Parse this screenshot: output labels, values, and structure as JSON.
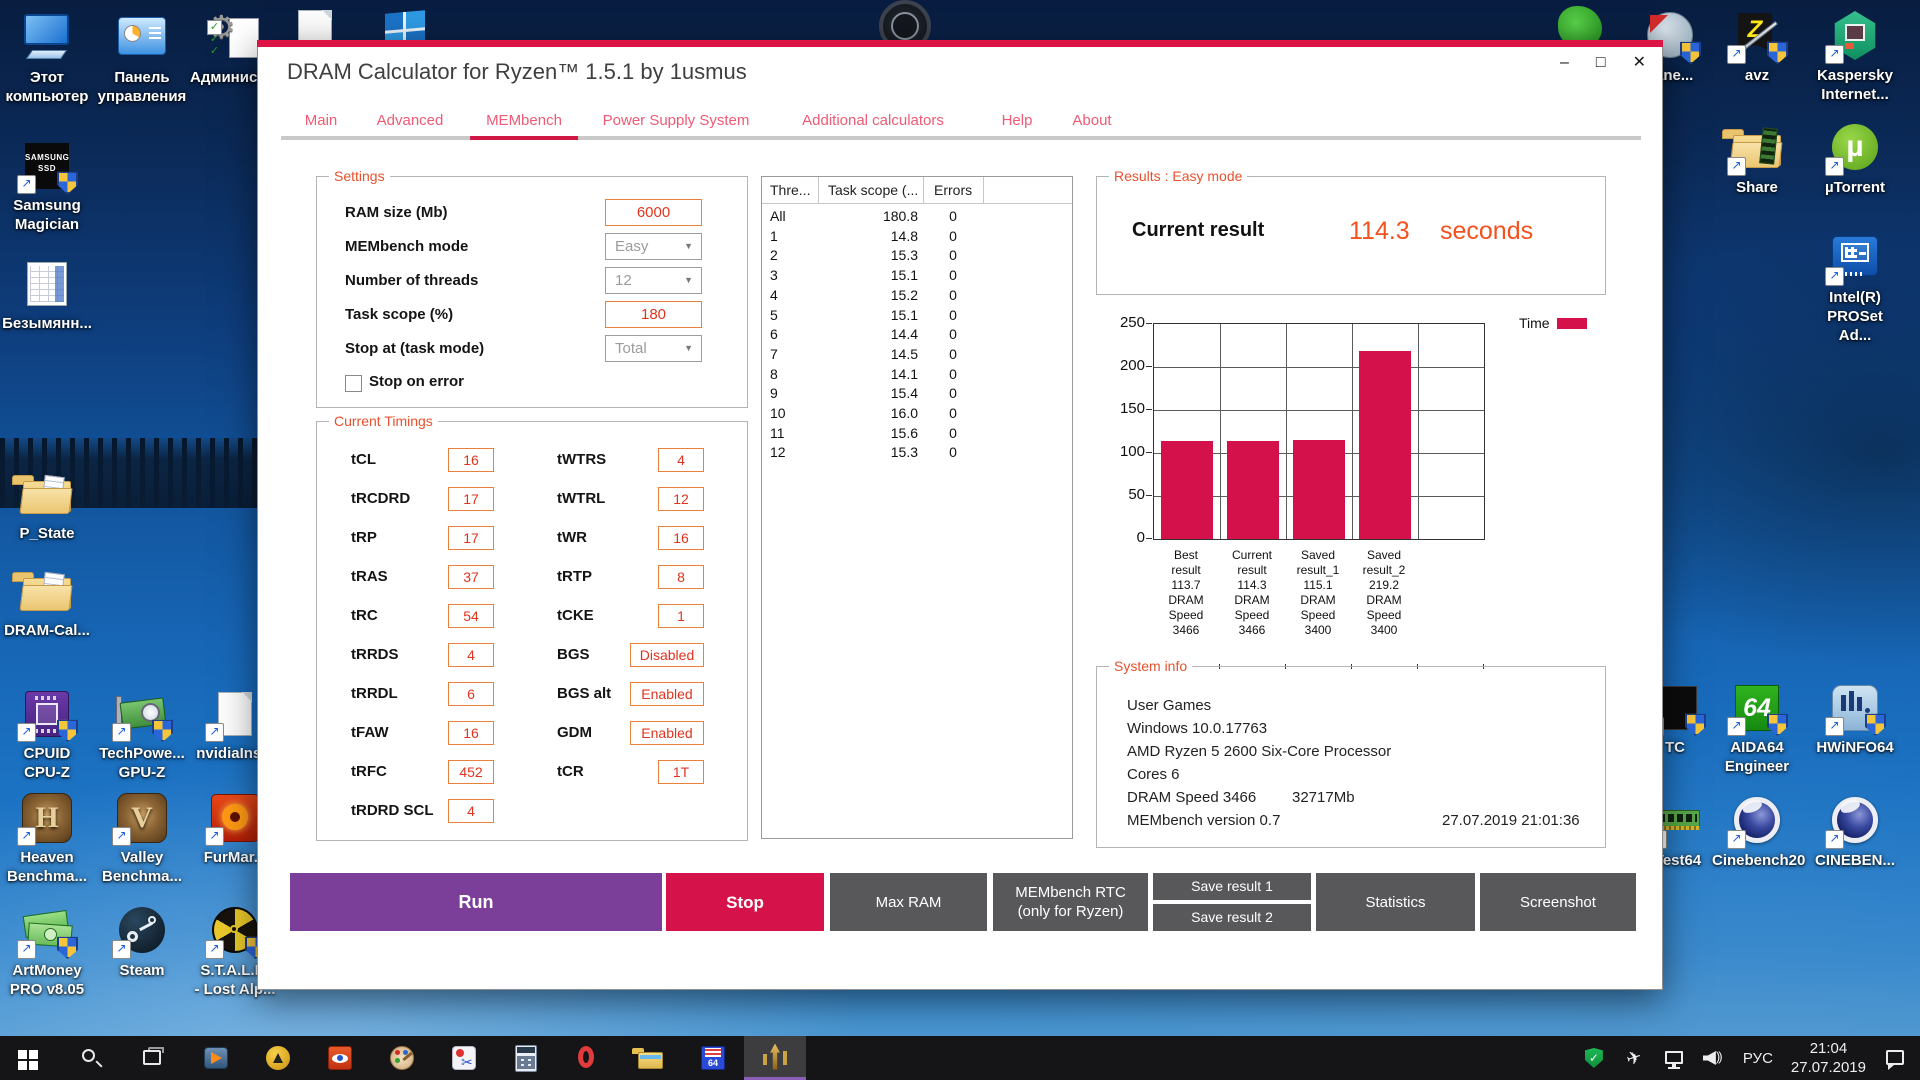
{
  "window": {
    "title": "DRAM Calculator for Ryzen™ 1.5.1 by 1usmus",
    "controls": {
      "minimize": "–",
      "maximize": "□",
      "close": "✕"
    },
    "tabs": [
      {
        "label": "Main",
        "active": false
      },
      {
        "label": "Advanced",
        "active": false
      },
      {
        "label": "MEMbench",
        "active": true
      },
      {
        "label": "Power Supply System",
        "active": false
      },
      {
        "label": "Additional calculators",
        "active": false
      },
      {
        "label": "Help",
        "active": false
      },
      {
        "label": "About",
        "active": false
      }
    ],
    "settings": {
      "legend": "Settings",
      "fields": [
        {
          "label": "RAM size (Mb)",
          "value": "6000",
          "control": "input"
        },
        {
          "label": "MEMbench mode",
          "value": "Easy",
          "control": "select"
        },
        {
          "label": "Number of threads",
          "value": "12",
          "control": "select"
        },
        {
          "label": "Task scope (%)",
          "value": "180",
          "control": "input"
        },
        {
          "label": "Stop at (task mode)",
          "value": "Total",
          "control": "select"
        }
      ],
      "stop_on_error": {
        "label": "Stop on error",
        "checked": false
      }
    },
    "timings": {
      "legend": "Current Timings",
      "left": [
        [
          "tCL",
          "16"
        ],
        [
          "tRCDRD",
          "17"
        ],
        [
          "tRP",
          "17"
        ],
        [
          "tRAS",
          "37"
        ],
        [
          "tRC",
          "54"
        ],
        [
          "tRRDS",
          "4"
        ],
        [
          "tRRDL",
          "6"
        ],
        [
          "tFAW",
          "16"
        ],
        [
          "tRFC",
          "452"
        ],
        [
          "tRDRD SCL",
          "4"
        ]
      ],
      "right": [
        [
          "tWTRS",
          "4"
        ],
        [
          "tWTRL",
          "12"
        ],
        [
          "tWR",
          "16"
        ],
        [
          "tRTP",
          "8"
        ],
        [
          "tCKE",
          "1"
        ],
        [
          "BGS",
          "Disabled"
        ],
        [
          "BGS alt",
          "Enabled"
        ],
        [
          "GDM",
          "Enabled"
        ],
        [
          "tCR",
          "1T"
        ]
      ],
      "wide_value_rows": [
        "BGS",
        "BGS alt",
        "GDM"
      ]
    },
    "thread_table": {
      "columns": [
        "Thre...",
        "Task scope (...",
        "Errors"
      ],
      "rows": [
        [
          "All",
          "180.8",
          "0"
        ],
        [
          "1",
          "14.8",
          "0"
        ],
        [
          "2",
          "15.3",
          "0"
        ],
        [
          "3",
          "15.1",
          "0"
        ],
        [
          "4",
          "15.2",
          "0"
        ],
        [
          "5",
          "15.1",
          "0"
        ],
        [
          "6",
          "14.4",
          "0"
        ],
        [
          "7",
          "14.5",
          "0"
        ],
        [
          "8",
          "14.1",
          "0"
        ],
        [
          "9",
          "15.4",
          "0"
        ],
        [
          "10",
          "16.0",
          "0"
        ],
        [
          "11",
          "15.6",
          "0"
        ],
        [
          "12",
          "15.3",
          "0"
        ]
      ]
    },
    "results": {
      "legend": "Results : Easy mode",
      "label": "Current result",
      "value": "114.3",
      "unit": "seconds"
    },
    "system_info": {
      "legend": "System info",
      "rows": [
        {
          "left": "User Games"
        },
        {
          "left": "Windows 10.0.17763"
        },
        {
          "left": "AMD Ryzen 5 2600 Six-Core Processor"
        },
        {
          "left": "Cores 6"
        },
        {
          "left": "DRAM Speed 3466",
          "mid": "32717Mb"
        },
        {
          "left": "MEMbench version 0.7",
          "right": "27.07.2019 21:01:36"
        }
      ]
    },
    "buttons": [
      {
        "id": "run",
        "label": "Run"
      },
      {
        "id": "stop",
        "label": "Stop"
      },
      {
        "id": "max-ram",
        "label": "Max RAM"
      },
      {
        "id": "membench-rtc",
        "label": "MEMbench RTC\n(only for Ryzen)"
      },
      {
        "id": "save-result-1",
        "label": "Save result 1"
      },
      {
        "id": "save-result-2",
        "label": "Save result 2"
      },
      {
        "id": "statistics",
        "label": "Statistics"
      },
      {
        "id": "screenshot",
        "label": "Screenshot"
      }
    ]
  },
  "chart_data": {
    "type": "bar",
    "categories": [
      "Best\nresult\n113.7\nDRAM\nSpeed\n3466",
      "Current\nresult\n114.3\nDRAM\nSpeed\n3466",
      "Saved\nresult_1\n115.1\nDRAM\nSpeed\n3400",
      "Saved\nresult_2\n219.2\nDRAM\nSpeed\n3400"
    ],
    "values": [
      113.7,
      114.3,
      115.1,
      219.2
    ],
    "series_name": "Time",
    "ylim": [
      0,
      250
    ],
    "yticks": [
      0,
      50,
      100,
      150,
      200,
      250
    ],
    "bar_color": "#d4114a",
    "grid": true,
    "legend_position": "top-right"
  },
  "desktop": {
    "icons": [
      {
        "kind": "pc",
        "label": "Этот\nкомпьютер"
      },
      {
        "kind": "panel",
        "label": "Панель\nуправления"
      },
      {
        "kind": "admin",
        "label": "Администр..."
      },
      {
        "kind": "samsung",
        "label": "Samsung\nMagician",
        "glyph": "SAMSUNG\nSSD",
        "shortcut": true,
        "shield": true
      },
      {
        "kind": "sheet",
        "label": "Безымянн..."
      },
      {
        "kind": "folder",
        "label": "P_State"
      },
      {
        "kind": "folder",
        "label": "DRAM-Cal..."
      },
      {
        "kind": "cpuz",
        "label": "CPUID\nCPU-Z",
        "shortcut": true,
        "shield": true
      },
      {
        "kind": "gpuz",
        "label": "TechPowe...\nGPU-Z",
        "shortcut": true,
        "shield": true
      },
      {
        "kind": "doc",
        "label": "nvidiaIns...",
        "shortcut": true
      },
      {
        "kind": "heaven",
        "label": "Heaven\nBenchma...",
        "glyph": "H",
        "shortcut": true
      },
      {
        "kind": "valley",
        "label": "Valley\nBenchma...",
        "glyph": "V",
        "shortcut": true
      },
      {
        "kind": "furmark",
        "label": "FurMar...",
        "shortcut": true
      },
      {
        "kind": "artmoney",
        "label": "ArtMoney\nPRO v8.05",
        "shortcut": true,
        "shield": true
      },
      {
        "kind": "steam",
        "label": "Steam",
        "shortcut": true
      },
      {
        "kind": "stalker",
        "label": "S.T.A.L.K.\n- Lost Alp...",
        "shortcut": true,
        "shield": true
      },
      {
        "kind": "ccleaner",
        "label": "eane...",
        "shield": true
      },
      {
        "kind": "avz",
        "label": "avz",
        "glyph": "Z",
        "shortcut": true,
        "shield": true
      },
      {
        "kind": "kaspersky",
        "label": "Kaspersky\nInternet...",
        "shortcut": true
      },
      {
        "kind": "share",
        "label": "Share",
        "shortcut": true
      },
      {
        "kind": "utorrent",
        "label": "µTorrent",
        "glyph": "µ",
        "shortcut": true
      },
      {
        "kind": "intel",
        "label": "Intel(R)\nPROSet Ad...",
        "shortcut": true
      },
      {
        "kind": "tcblack",
        "label": "TC",
        "shortcut": true,
        "shield": true
      },
      {
        "kind": "aida",
        "label": "AIDA64\nEngineer",
        "glyph": "64",
        "shortcut": true,
        "shield": true
      },
      {
        "kind": "hwinfo",
        "label": "HWiNFO64",
        "shortcut": true,
        "shield": true
      },
      {
        "kind": "ram",
        "label": "Test64",
        "shortcut": true
      },
      {
        "kind": "cine",
        "label": "Cinebench20",
        "shortcut": true
      },
      {
        "kind": "cine",
        "label": "CINEBEN...",
        "shortcut": true
      },
      {
        "kind": "doc",
        "label": ""
      },
      {
        "kind": "winflag",
        "label": ""
      },
      {
        "kind": "watch",
        "label": ""
      },
      {
        "kind": "greenpeek",
        "label": ""
      }
    ]
  },
  "taskbar": {
    "apps": [
      {
        "id": "start"
      },
      {
        "id": "search"
      },
      {
        "id": "task-view"
      },
      {
        "id": "media-player"
      },
      {
        "id": "aimp"
      },
      {
        "id": "image-viewer"
      },
      {
        "id": "paint"
      },
      {
        "id": "snipping-tool"
      },
      {
        "id": "calculator"
      },
      {
        "id": "opera"
      },
      {
        "id": "file-explorer"
      },
      {
        "id": "memtest64"
      },
      {
        "id": "dram-calculator",
        "active": true
      }
    ],
    "tray": [
      {
        "id": "defender"
      },
      {
        "id": "antivirus"
      },
      {
        "id": "network"
      },
      {
        "id": "volume"
      }
    ],
    "language": "РУС",
    "clock": {
      "time": "21:04",
      "date": "27.07.2019"
    }
  }
}
